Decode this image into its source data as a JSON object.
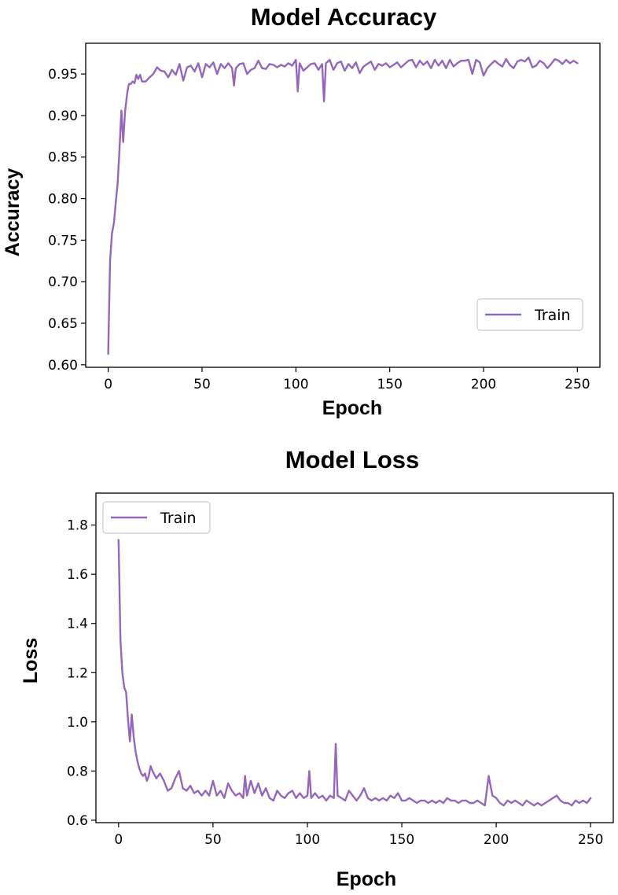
{
  "colors": {
    "series": "#9467bd"
  },
  "chart_data": [
    {
      "type": "line",
      "title": "Model Accuracy",
      "xlabel": "Epoch",
      "ylabel": "Accuracy",
      "xlim": [
        -12,
        262
      ],
      "ylim": [
        0.597,
        0.987
      ],
      "xticks": [
        0,
        50,
        100,
        150,
        200,
        250
      ],
      "yticks": [
        0.6,
        0.65,
        0.7,
        0.75,
        0.8,
        0.85,
        0.9,
        0.95
      ],
      "ytick_labels": [
        "0.60",
        "0.65",
        "0.70",
        "0.75",
        "0.80",
        "0.85",
        "0.90",
        "0.95"
      ],
      "legend": "lower-right",
      "grid": false,
      "series": [
        {
          "name": "Train",
          "x": [
            0,
            1,
            2,
            3,
            4,
            5,
            6,
            7,
            8,
            9,
            10,
            11,
            12,
            13,
            14,
            15,
            16,
            17,
            18,
            20,
            22,
            24,
            26,
            28,
            30,
            32,
            34,
            36,
            38,
            40,
            42,
            44,
            46,
            48,
            50,
            52,
            54,
            56,
            58,
            60,
            62,
            64,
            66,
            67,
            68,
            70,
            72,
            74,
            76,
            78,
            80,
            82,
            84,
            86,
            88,
            90,
            92,
            94,
            96,
            98,
            100,
            101,
            102,
            104,
            106,
            108,
            110,
            112,
            114,
            115,
            116,
            118,
            120,
            122,
            124,
            126,
            128,
            130,
            132,
            134,
            136,
            138,
            140,
            142,
            144,
            146,
            148,
            150,
            152,
            154,
            156,
            158,
            160,
            162,
            164,
            166,
            168,
            170,
            172,
            174,
            176,
            178,
            180,
            182,
            184,
            186,
            188,
            190,
            192,
            194,
            196,
            198,
            200,
            202,
            204,
            206,
            208,
            210,
            212,
            214,
            216,
            218,
            220,
            222,
            224,
            226,
            228,
            230,
            232,
            234,
            236,
            238,
            240,
            242,
            244,
            246,
            248,
            250
          ],
          "values": [
            0.613,
            0.725,
            0.758,
            0.77,
            0.795,
            0.818,
            0.86,
            0.906,
            0.868,
            0.905,
            0.925,
            0.938,
            0.938,
            0.941,
            0.939,
            0.949,
            0.944,
            0.949,
            0.941,
            0.941,
            0.946,
            0.95,
            0.958,
            0.954,
            0.953,
            0.946,
            0.955,
            0.949,
            0.962,
            0.942,
            0.958,
            0.96,
            0.953,
            0.963,
            0.946,
            0.962,
            0.958,
            0.964,
            0.95,
            0.962,
            0.957,
            0.963,
            0.957,
            0.936,
            0.957,
            0.962,
            0.963,
            0.95,
            0.955,
            0.957,
            0.966,
            0.957,
            0.956,
            0.962,
            0.961,
            0.958,
            0.961,
            0.959,
            0.963,
            0.96,
            0.967,
            0.929,
            0.963,
            0.954,
            0.958,
            0.962,
            0.963,
            0.955,
            0.962,
            0.917,
            0.963,
            0.967,
            0.955,
            0.963,
            0.965,
            0.954,
            0.962,
            0.957,
            0.964,
            0.951,
            0.959,
            0.962,
            0.965,
            0.955,
            0.962,
            0.96,
            0.963,
            0.958,
            0.961,
            0.964,
            0.958,
            0.962,
            0.966,
            0.967,
            0.958,
            0.966,
            0.961,
            0.965,
            0.957,
            0.967,
            0.96,
            0.966,
            0.957,
            0.967,
            0.959,
            0.963,
            0.966,
            0.966,
            0.967,
            0.95,
            0.967,
            0.964,
            0.948,
            0.957,
            0.962,
            0.966,
            0.962,
            0.959,
            0.968,
            0.961,
            0.957,
            0.965,
            0.967,
            0.965,
            0.97,
            0.958,
            0.96,
            0.966,
            0.963,
            0.957,
            0.962,
            0.968,
            0.966,
            0.962,
            0.967,
            0.963,
            0.966,
            0.963
          ]
        }
      ]
    },
    {
      "type": "line",
      "title": "Model Loss",
      "xlabel": "Epoch",
      "ylabel": "Loss",
      "xlim": [
        -12,
        262
      ],
      "ylim": [
        0.59,
        1.93
      ],
      "xticks": [
        0,
        50,
        100,
        150,
        200,
        250
      ],
      "yticks": [
        0.6,
        0.8,
        1.0,
        1.2,
        1.4,
        1.6,
        1.8
      ],
      "ytick_labels": [
        "0.6",
        "0.8",
        "1.0",
        "1.2",
        "1.4",
        "1.6",
        "1.8"
      ],
      "legend": "upper-left",
      "grid": false,
      "series": [
        {
          "name": "Train",
          "x": [
            0,
            1,
            2,
            3,
            4,
            5,
            6,
            7,
            8,
            9,
            10,
            11,
            12,
            13,
            14,
            15,
            16,
            17,
            18,
            20,
            22,
            24,
            26,
            28,
            30,
            32,
            34,
            36,
            38,
            40,
            42,
            44,
            46,
            48,
            50,
            52,
            54,
            56,
            58,
            60,
            62,
            64,
            66,
            67,
            68,
            70,
            72,
            74,
            76,
            78,
            80,
            82,
            84,
            86,
            88,
            90,
            92,
            94,
            96,
            98,
            100,
            101,
            102,
            104,
            106,
            108,
            110,
            112,
            114,
            115,
            116,
            118,
            120,
            122,
            124,
            126,
            128,
            130,
            132,
            134,
            136,
            138,
            140,
            142,
            144,
            146,
            148,
            150,
            152,
            154,
            156,
            158,
            160,
            162,
            164,
            166,
            168,
            170,
            172,
            174,
            176,
            178,
            180,
            182,
            184,
            186,
            188,
            190,
            192,
            194,
            196,
            198,
            200,
            202,
            204,
            206,
            208,
            210,
            212,
            214,
            216,
            218,
            220,
            222,
            224,
            226,
            228,
            230,
            232,
            234,
            236,
            238,
            240,
            242,
            244,
            246,
            248,
            250
          ],
          "values": [
            1.74,
            1.33,
            1.2,
            1.14,
            1.12,
            1.01,
            0.92,
            1.03,
            0.94,
            0.88,
            0.84,
            0.81,
            0.79,
            0.78,
            0.79,
            0.76,
            0.78,
            0.82,
            0.8,
            0.77,
            0.79,
            0.76,
            0.72,
            0.73,
            0.77,
            0.8,
            0.73,
            0.72,
            0.74,
            0.71,
            0.72,
            0.7,
            0.72,
            0.7,
            0.76,
            0.7,
            0.72,
            0.69,
            0.75,
            0.72,
            0.7,
            0.71,
            0.69,
            0.78,
            0.7,
            0.76,
            0.71,
            0.75,
            0.7,
            0.73,
            0.69,
            0.68,
            0.72,
            0.7,
            0.69,
            0.71,
            0.72,
            0.69,
            0.71,
            0.69,
            0.7,
            0.8,
            0.69,
            0.71,
            0.69,
            0.7,
            0.68,
            0.7,
            0.69,
            0.91,
            0.7,
            0.69,
            0.68,
            0.72,
            0.7,
            0.68,
            0.7,
            0.73,
            0.69,
            0.68,
            0.69,
            0.68,
            0.69,
            0.68,
            0.7,
            0.69,
            0.71,
            0.68,
            0.68,
            0.69,
            0.68,
            0.67,
            0.68,
            0.68,
            0.67,
            0.68,
            0.67,
            0.68,
            0.67,
            0.69,
            0.68,
            0.68,
            0.67,
            0.68,
            0.68,
            0.67,
            0.67,
            0.68,
            0.67,
            0.66,
            0.78,
            0.7,
            0.69,
            0.67,
            0.66,
            0.68,
            0.67,
            0.68,
            0.67,
            0.66,
            0.68,
            0.67,
            0.66,
            0.67,
            0.66,
            0.67,
            0.68,
            0.69,
            0.7,
            0.68,
            0.67,
            0.67,
            0.66,
            0.68,
            0.67,
            0.68,
            0.67,
            0.69
          ]
        }
      ]
    }
  ]
}
